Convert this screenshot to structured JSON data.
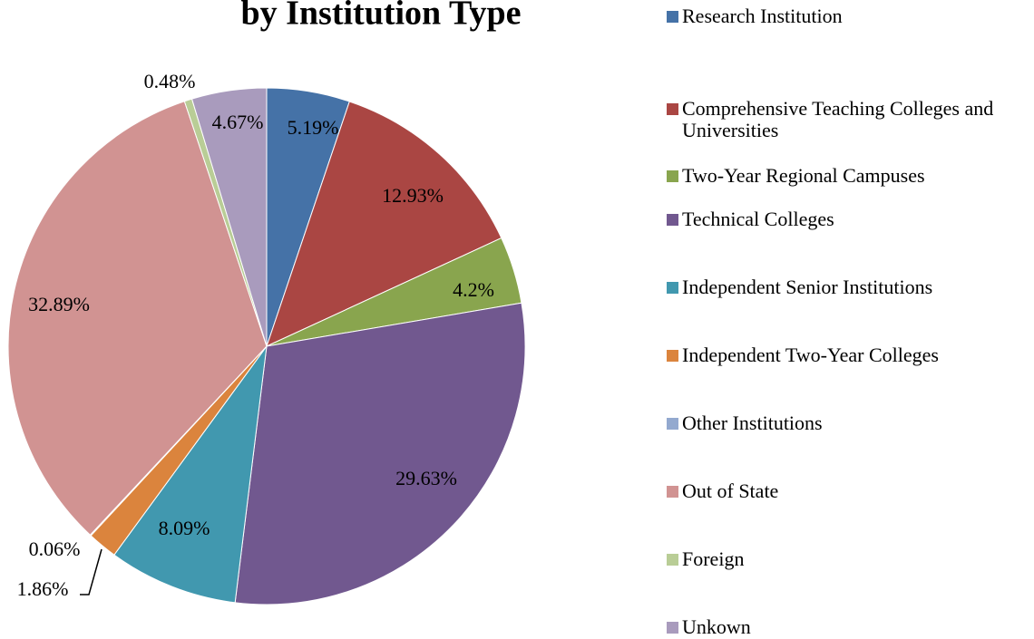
{
  "chart_data": {
    "type": "pie",
    "title": "by Institution Type",
    "categories": [
      "Research Institution",
      "Comprehensive Teaching Colleges and Universities",
      "Two-Year Regional Campuses",
      "Technical Colleges",
      "Independent Senior Institutions",
      "Independent Two-Year Colleges",
      "Other Institutions",
      "Out of State",
      "Foreign",
      "Unkown"
    ],
    "values": [
      5.19,
      12.93,
      4.2,
      29.63,
      8.09,
      1.86,
      0.06,
      32.89,
      0.48,
      4.67
    ],
    "value_labels": [
      "5.19%",
      "12.93%",
      "4.2%",
      "29.63%",
      "8.09%",
      "1.86%",
      "0.06%",
      "32.89%",
      "0.48%",
      "4.67%"
    ],
    "colors": [
      "#4572a7",
      "#aa4643",
      "#89a54e",
      "#71588f",
      "#4198af",
      "#db843d",
      "#93a9cf",
      "#d19392",
      "#b9cd96",
      "#a99bbd"
    ],
    "legend": "right"
  }
}
